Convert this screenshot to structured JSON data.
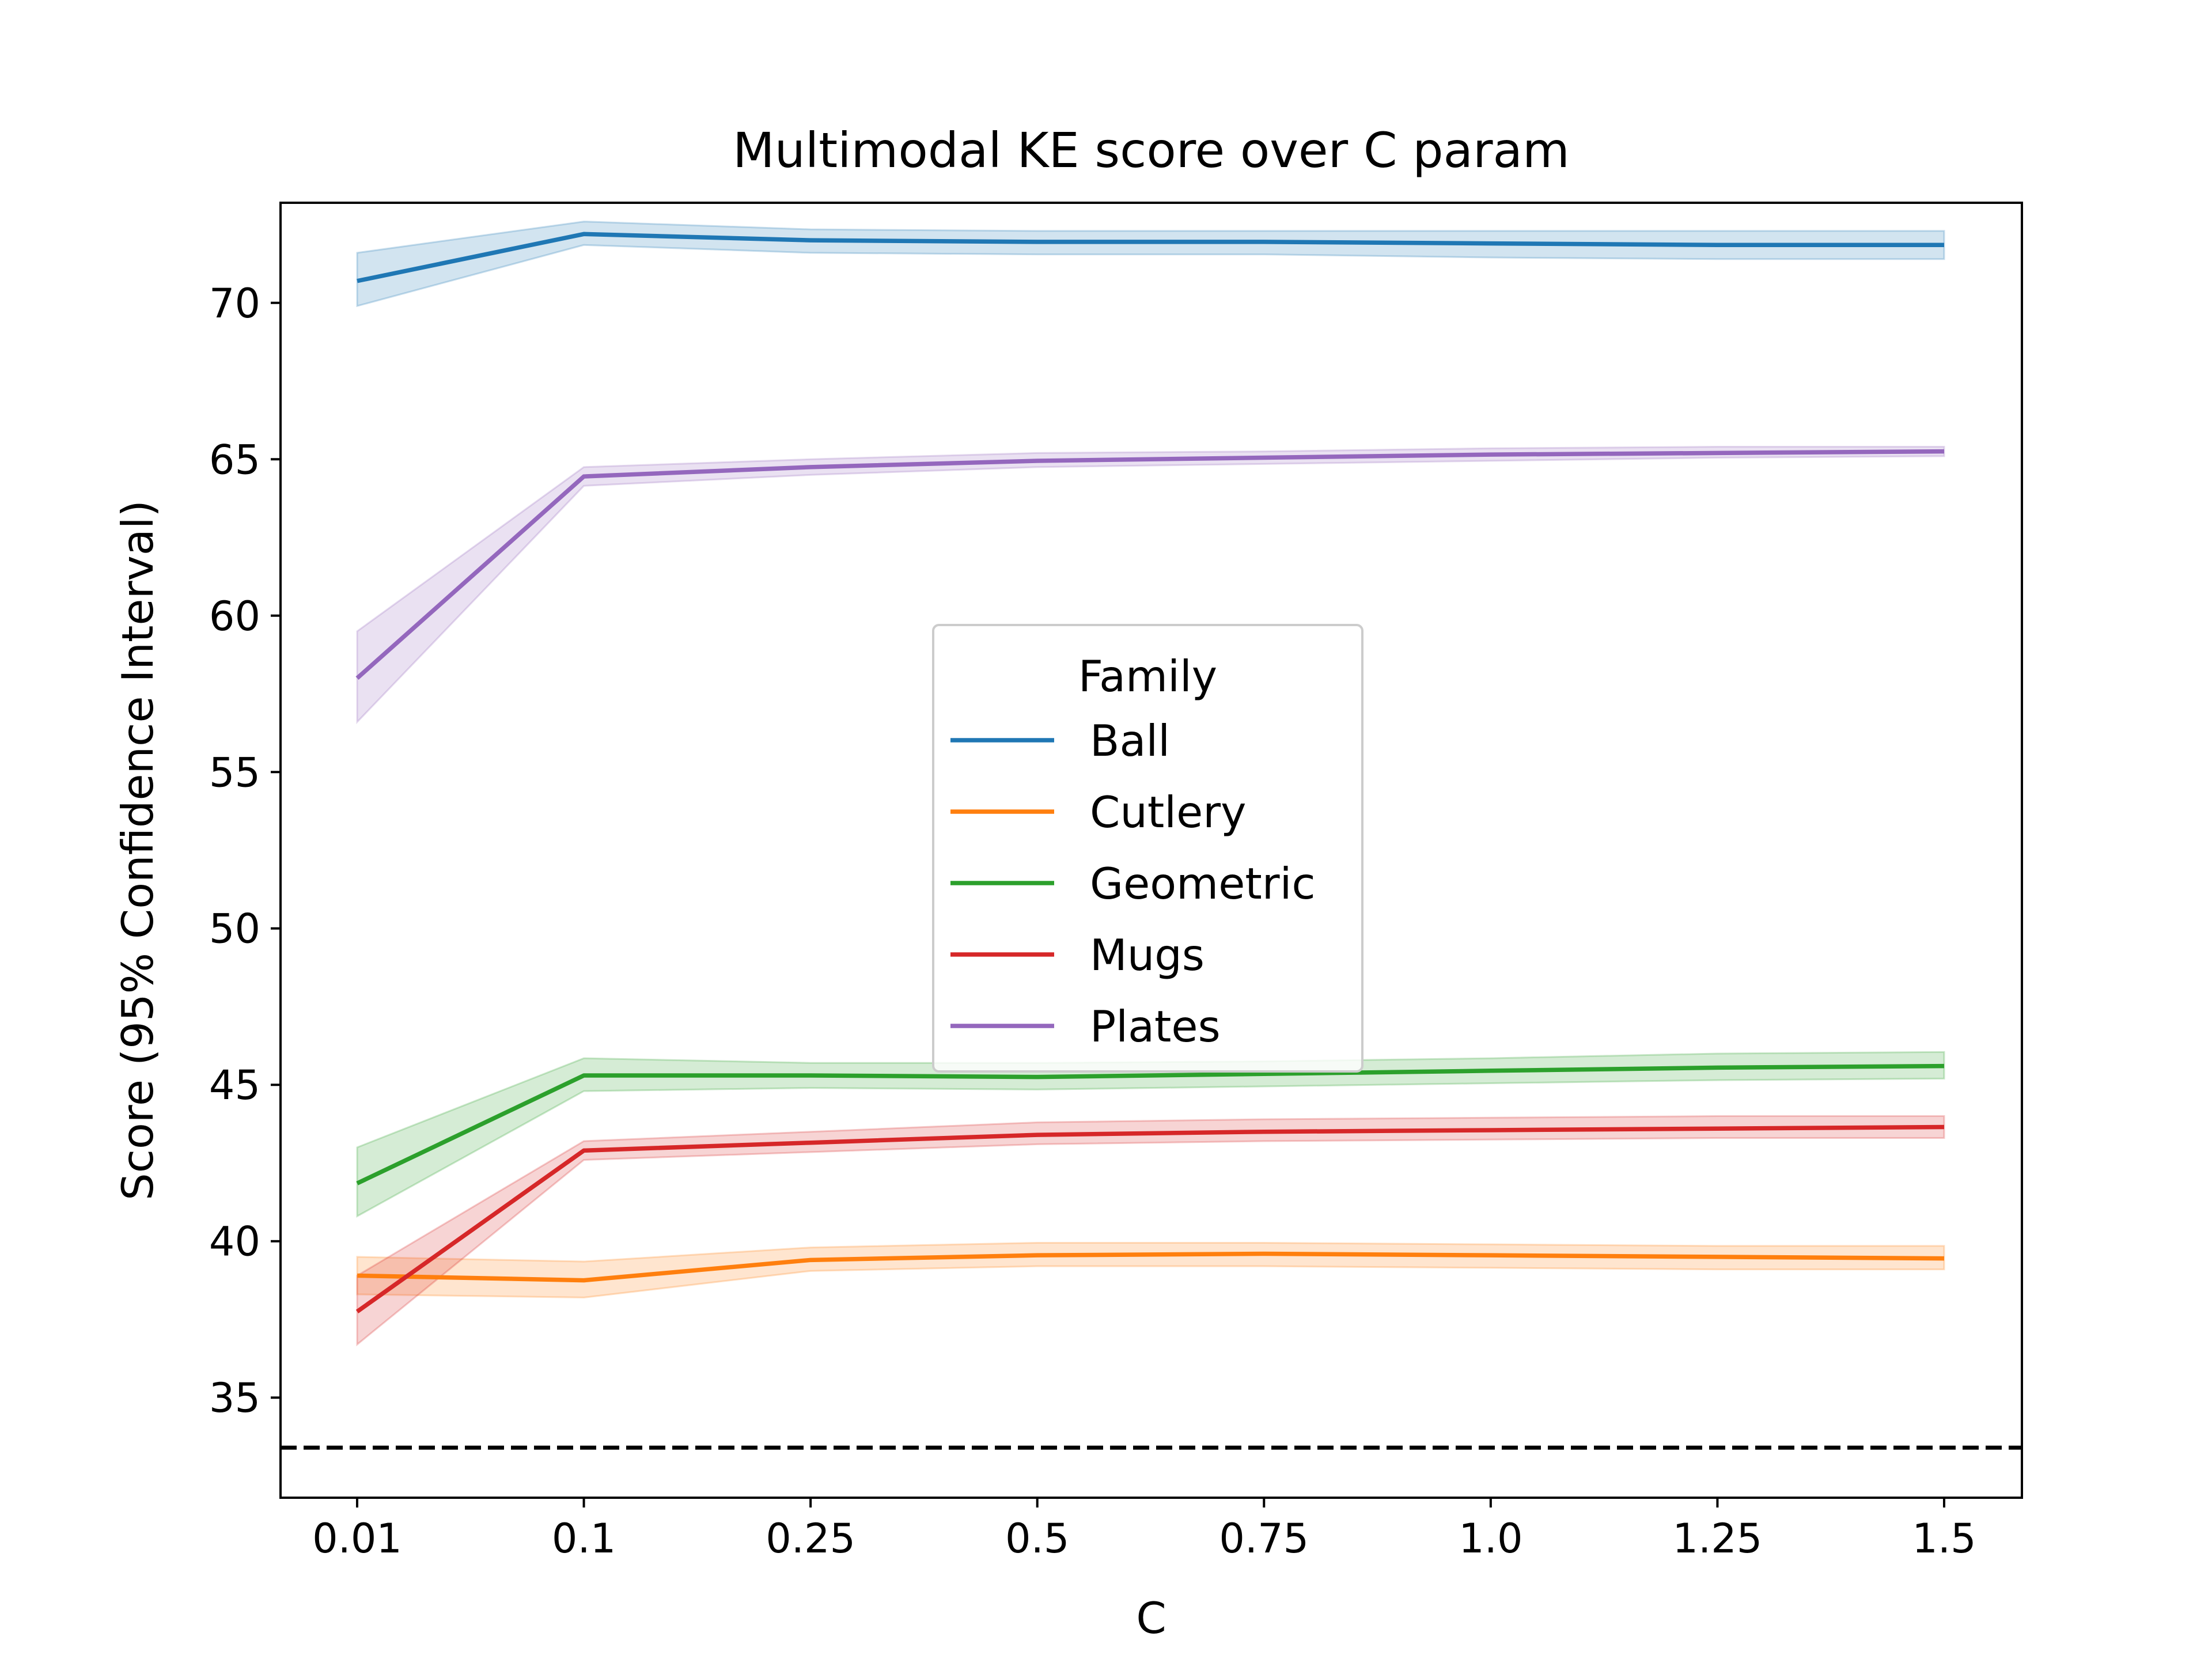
{
  "chart_data": {
    "type": "line",
    "title": "Multimodal KE score over C param",
    "xlabel": "C",
    "ylabel": "Score (95% Confidence Interval)",
    "x": [
      "0.01",
      "0.1",
      "0.25",
      "0.5",
      "0.75",
      "1.0",
      "1.25",
      "1.5"
    ],
    "xaxis_scale": "categorical",
    "ylim": [
      31.8,
      73.2
    ],
    "yticks": [
      35,
      40,
      45,
      50,
      55,
      60,
      65,
      70
    ],
    "grid": false,
    "legend": {
      "title": "Family",
      "placement": "center"
    },
    "reference_line": {
      "y": 33.4,
      "style": "dashed",
      "color": "#000000"
    },
    "series": [
      {
        "name": "Ball",
        "color": "#1f77b4",
        "values": [
          70.7,
          72.2,
          72.0,
          71.95,
          71.95,
          71.9,
          71.85,
          71.85
        ],
        "ci_low": [
          69.9,
          71.85,
          71.6,
          71.55,
          71.55,
          71.45,
          71.4,
          71.4
        ],
        "ci_high": [
          71.6,
          72.6,
          72.35,
          72.3,
          72.3,
          72.3,
          72.3,
          72.3
        ]
      },
      {
        "name": "Cutlery",
        "color": "#ff7f0e",
        "values": [
          38.9,
          38.75,
          39.4,
          39.55,
          39.6,
          39.55,
          39.5,
          39.45
        ],
        "ci_low": [
          38.3,
          38.2,
          39.05,
          39.2,
          39.2,
          39.15,
          39.1,
          39.1
        ],
        "ci_high": [
          39.5,
          39.35,
          39.8,
          39.95,
          39.95,
          39.9,
          39.85,
          39.85
        ]
      },
      {
        "name": "Geometric",
        "color": "#2ca02c",
        "values": [
          41.85,
          45.3,
          45.3,
          45.25,
          45.35,
          45.45,
          45.55,
          45.6
        ],
        "ci_low": [
          40.8,
          44.8,
          44.9,
          44.85,
          44.95,
          45.05,
          45.15,
          45.2
        ],
        "ci_high": [
          43.0,
          45.85,
          45.7,
          45.7,
          45.75,
          45.85,
          46.0,
          46.05
        ]
      },
      {
        "name": "Mugs",
        "color": "#d62728",
        "values": [
          37.75,
          42.9,
          43.15,
          43.4,
          43.5,
          43.55,
          43.6,
          43.65
        ],
        "ci_low": [
          36.7,
          42.6,
          42.85,
          43.1,
          43.2,
          43.25,
          43.3,
          43.3
        ],
        "ci_high": [
          38.9,
          43.2,
          43.5,
          43.8,
          43.9,
          43.95,
          44.0,
          44.0
        ]
      },
      {
        "name": "Plates",
        "color": "#9467bd",
        "values": [
          58.0,
          64.45,
          64.75,
          64.95,
          65.05,
          65.15,
          65.2,
          65.25
        ],
        "ci_low": [
          56.6,
          64.15,
          64.5,
          64.75,
          64.85,
          64.95,
          65.05,
          65.1
        ],
        "ci_high": [
          59.5,
          64.75,
          65.0,
          65.2,
          65.25,
          65.35,
          65.4,
          65.4
        ]
      }
    ]
  }
}
